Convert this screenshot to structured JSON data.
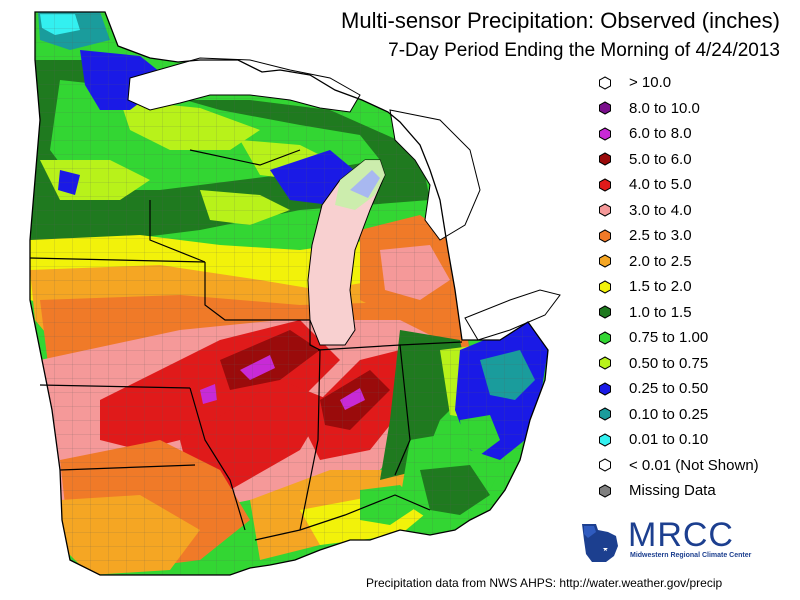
{
  "title": "Multi-sensor Precipitation:  Observed (inches)",
  "subtitle": "7-Day Period Ending the Morning of 4/24/2013",
  "legend": [
    {
      "label": "> 10.0",
      "color": "#ffffff",
      "icon": "hexagon-marker"
    },
    {
      "label": "8.0 to 10.0",
      "color": "#7a0f8c",
      "icon": "hexagon-marker"
    },
    {
      "label": "6.0 to 8.0",
      "color": "#c82ad6",
      "icon": "hexagon-marker"
    },
    {
      "label": "5.0 to 6.0",
      "color": "#9a0b0b",
      "icon": "hexagon-marker"
    },
    {
      "label": "4.0 to 5.0",
      "color": "#e01a1a",
      "icon": "hexagon-marker"
    },
    {
      "label": "3.0 to 4.0",
      "color": "#f59999",
      "icon": "hexagon-marker"
    },
    {
      "label": "2.5 to 3.0",
      "color": "#f07a28",
      "icon": "hexagon-marker"
    },
    {
      "label": "2.0 to 2.5",
      "color": "#f5a623",
      "icon": "hexagon-marker"
    },
    {
      "label": "1.5 to 2.0",
      "color": "#f2f20a",
      "icon": "hexagon-marker"
    },
    {
      "label": "1.0 to 1.5",
      "color": "#1f7a1f",
      "icon": "hexagon-marker"
    },
    {
      "label": "0.75 to 1.00",
      "color": "#33d633",
      "icon": "hexagon-marker"
    },
    {
      "label": "0.50 to 0.75",
      "color": "#b8f21a",
      "icon": "hexagon-marker"
    },
    {
      "label": "0.25 to 0.50",
      "color": "#1a1ae6",
      "icon": "hexagon-marker"
    },
    {
      "label": "0.10 to 0.25",
      "color": "#1a9c9c",
      "icon": "hexagon-marker"
    },
    {
      "label": "0.01 to 0.10",
      "color": "#33f0f0",
      "icon": "hexagon-marker"
    },
    {
      "label": "< 0.01 (Not Shown)",
      "color": "#ffffff",
      "icon": "hexagon-marker"
    },
    {
      "label": "Missing Data",
      "color": "#808080",
      "icon": "hexagon-marker"
    }
  ],
  "logo": {
    "text": "MRCC",
    "subtext": "Midwestern Regional Climate Center",
    "color": "#1c3f8f"
  },
  "source": "Precipitation data from NWS AHPS:  http://water.weather.gov/precip",
  "colors": {
    "lake": "#e8e8e8",
    "state_border": "#000000",
    "county_border": "#666666"
  }
}
